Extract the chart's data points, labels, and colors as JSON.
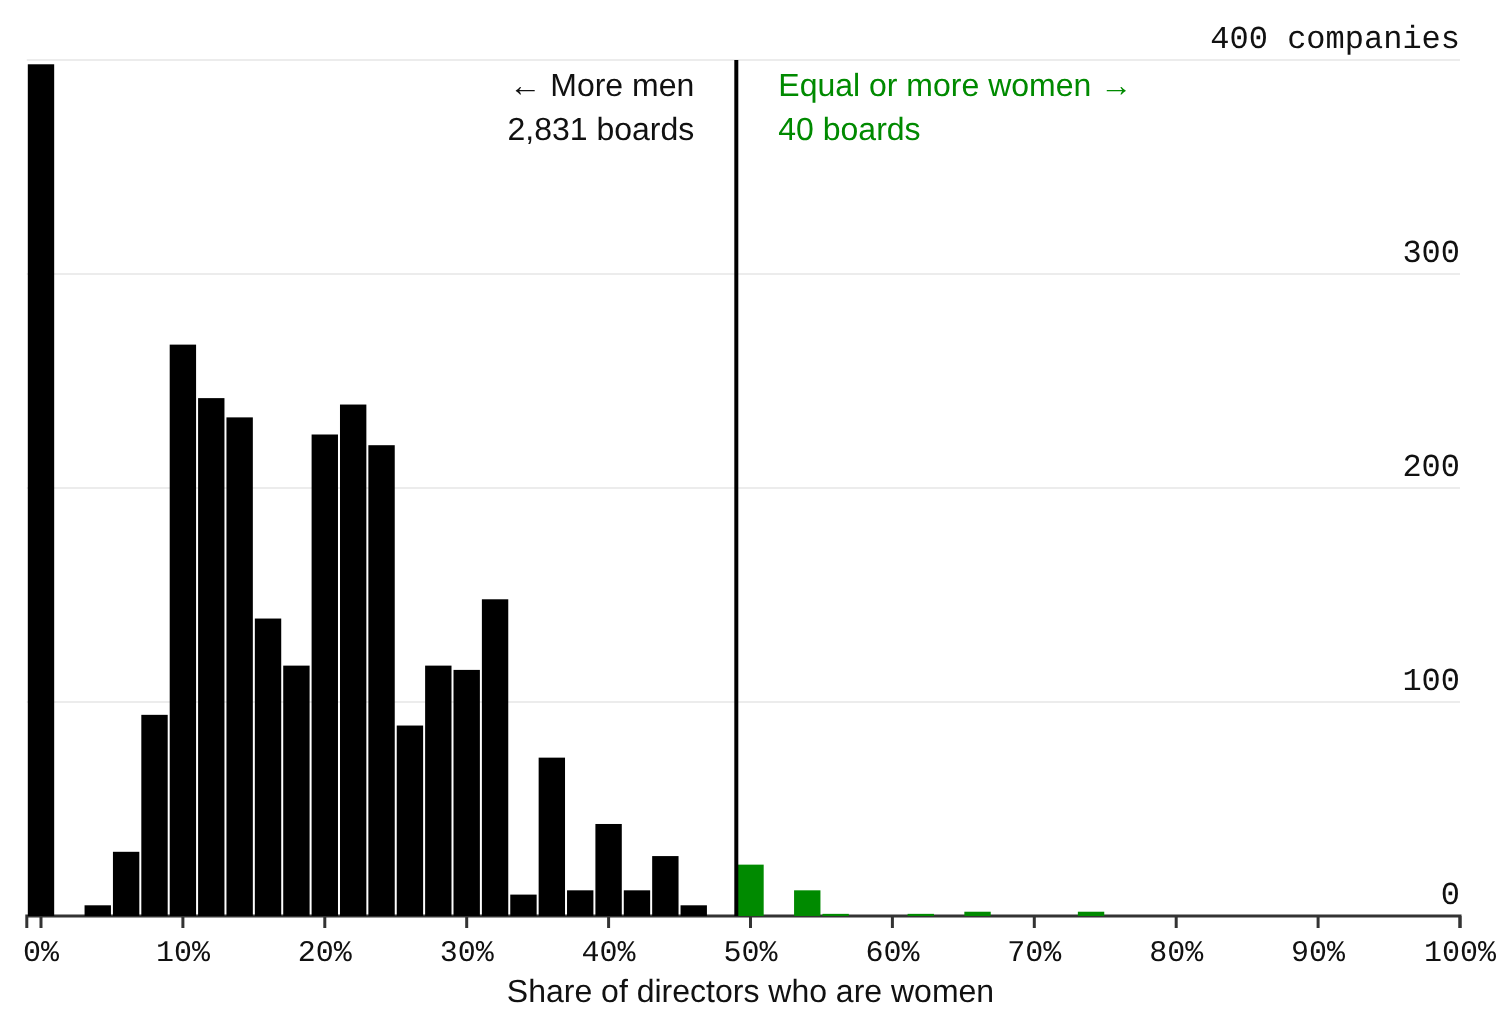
{
  "chart_data": {
    "type": "histogram",
    "xlabel": "Share of directors who are women",
    "bins": [
      -1,
      1,
      3,
      5,
      7,
      9,
      11,
      13,
      15,
      17,
      19,
      21,
      23,
      25,
      27,
      29,
      31,
      33,
      35,
      37,
      39,
      41,
      43,
      45,
      47,
      49,
      51,
      53,
      55,
      57,
      59,
      61,
      63,
      65,
      67,
      69,
      71,
      73,
      75
    ],
    "values": [
      398,
      0,
      5,
      30,
      94,
      267,
      242,
      233,
      139,
      117,
      225,
      239,
      220,
      89,
      117,
      115,
      148,
      10,
      74,
      12,
      43,
      12,
      28,
      5,
      0,
      24,
      0,
      12,
      1,
      0,
      0,
      1,
      0,
      2,
      0,
      0,
      0,
      2
    ],
    "colors": [
      "#000000",
      "#000000",
      "#000000",
      "#000000",
      "#000000",
      "#000000",
      "#000000",
      "#000000",
      "#000000",
      "#000000",
      "#000000",
      "#000000",
      "#000000",
      "#000000",
      "#000000",
      "#000000",
      "#000000",
      "#000000",
      "#000000",
      "#000000",
      "#000000",
      "#000000",
      "#000000",
      "#000000",
      "#000000",
      "#008a00",
      "#008a00",
      "#008a00",
      "#008a00",
      "#008a00",
      "#008a00",
      "#008a00",
      "#008a00",
      "#008a00",
      "#008a00",
      "#008a00",
      "#008a00",
      "#008a00"
    ],
    "xlim": [
      -1,
      100
    ],
    "xticks": [
      {
        "value": 0,
        "label": "0%"
      },
      {
        "value": 10,
        "label": "10%"
      },
      {
        "value": 20,
        "label": "20%"
      },
      {
        "value": 30,
        "label": "30%"
      },
      {
        "value": 40,
        "label": "40%"
      },
      {
        "value": 50,
        "label": "50%"
      },
      {
        "value": 60,
        "label": "60%"
      },
      {
        "value": 70,
        "label": "70%"
      },
      {
        "value": 80,
        "label": "80%"
      },
      {
        "value": 90,
        "label": "90%"
      },
      {
        "value": 100,
        "label": "100%"
      }
    ],
    "ylim": [
      0,
      400
    ],
    "yticks": [
      0,
      100,
      200,
      300,
      {
        "value": 400,
        "label": "400 companies"
      }
    ],
    "grid": "y",
    "ref_lines": [
      {
        "axis": "x",
        "value": 49,
        "color": "#000000"
      }
    ],
    "annotations": [
      "← More men",
      "2,831 boards",
      "Equal or more women →",
      "40 boards"
    ]
  }
}
